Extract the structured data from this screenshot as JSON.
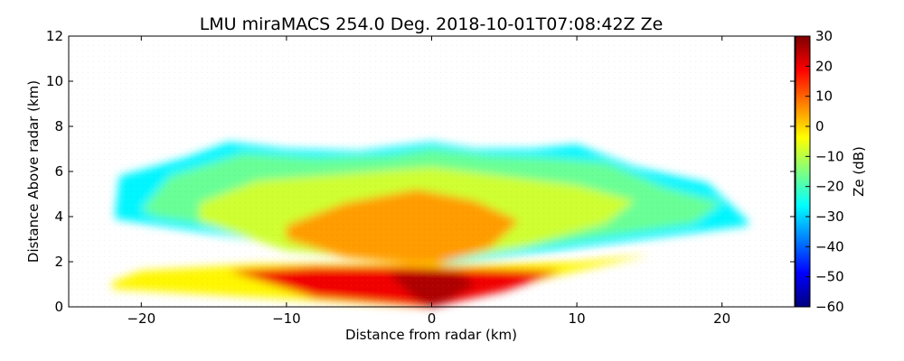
{
  "chart_data": {
    "type": "heatmap",
    "title": "LMU miraMACS 254.0 Deg. 2018-10-01T07:08:42Z  Ze",
    "xlabel": "Distance from radar (km)",
    "ylabel": "Distance Above radar  (km)",
    "xlim": [
      -25,
      25
    ],
    "ylim": [
      0,
      12
    ],
    "xticks": [
      -20,
      -10,
      0,
      10,
      20
    ],
    "xtick_labels": [
      "−20",
      "−10",
      "0",
      "10",
      "20"
    ],
    "yticks": [
      0,
      2,
      4,
      6,
      8,
      10,
      12
    ],
    "ytick_labels": [
      "0",
      "2",
      "4",
      "6",
      "8",
      "10",
      "12"
    ],
    "colorbar": {
      "label": "Ze (dB)",
      "range": [
        -60,
        30
      ],
      "ticks": [
        30,
        20,
        10,
        0,
        -10,
        -20,
        -30,
        -40,
        -50,
        -60
      ],
      "tick_labels": [
        "30",
        "20",
        "10",
        "0",
        "−10",
        "−20",
        "−30",
        "−40",
        "−50",
        "−60"
      ],
      "colormap": "jet"
    },
    "regions": [
      {
        "name": "cloud-top-outer",
        "ze_db": -27,
        "polygon": [
          [
            -21.8,
            4.2
          ],
          [
            -21.5,
            5.8
          ],
          [
            -17,
            6.6
          ],
          [
            -14,
            7.3
          ],
          [
            -10,
            7.0
          ],
          [
            -5,
            6.9
          ],
          [
            0,
            7.3
          ],
          [
            3,
            7.0
          ],
          [
            7,
            7.0
          ],
          [
            10,
            7.2
          ],
          [
            14,
            6.2
          ],
          [
            19,
            5.5
          ],
          [
            21.8,
            3.8
          ],
          [
            21.8,
            3.6
          ],
          [
            0,
            1.8
          ],
          [
            -21.8,
            3.9
          ]
        ]
      },
      {
        "name": "upper-cloud-green",
        "ze_db": -17,
        "polygon": [
          [
            -20,
            4.3
          ],
          [
            -18,
            5.8
          ],
          [
            -13,
            6.8
          ],
          [
            -8,
            6.6
          ],
          [
            -3,
            6.7
          ],
          [
            0,
            7.0
          ],
          [
            4,
            6.7
          ],
          [
            8,
            6.6
          ],
          [
            12,
            6.4
          ],
          [
            16,
            5.3
          ],
          [
            20,
            4.6
          ],
          [
            18,
            3.7
          ],
          [
            0,
            2.0
          ],
          [
            -19,
            4.0
          ]
        ]
      },
      {
        "name": "mid-cloud-yellow",
        "ze_db": -8,
        "polygon": [
          [
            -16,
            4.6
          ],
          [
            -12,
            5.6
          ],
          [
            -6,
            5.9
          ],
          [
            0,
            6.2
          ],
          [
            5,
            5.8
          ],
          [
            10,
            5.4
          ],
          [
            14,
            4.7
          ],
          [
            12,
            3.7
          ],
          [
            6,
            2.6
          ],
          [
            0,
            1.9
          ],
          [
            -10,
            2.5
          ],
          [
            -16,
            3.8
          ]
        ]
      },
      {
        "name": "core-orange",
        "ze_db": 5,
        "polygon": [
          [
            -10,
            3.6
          ],
          [
            -6,
            4.6
          ],
          [
            -1,
            5.2
          ],
          [
            3,
            4.7
          ],
          [
            6,
            3.8
          ],
          [
            4,
            2.6
          ],
          [
            0,
            1.8
          ],
          [
            -6,
            2.2
          ],
          [
            -10,
            3.0
          ]
        ]
      },
      {
        "name": "low-layer-yellow",
        "ze_db": -3,
        "polygon": [
          [
            -22,
            1.1
          ],
          [
            -22,
            0.8
          ],
          [
            -10,
            0.35
          ],
          [
            0,
            0
          ],
          [
            8,
            1.3
          ],
          [
            15,
            2.3
          ],
          [
            10,
            2.0
          ],
          [
            0,
            1.9
          ],
          [
            -12,
            1.9
          ],
          [
            -20,
            1.6
          ]
        ]
      },
      {
        "name": "near-radar-red",
        "ze_db": 20,
        "polygon": [
          [
            -14,
            1.6
          ],
          [
            -8,
            0.4
          ],
          [
            0,
            0
          ],
          [
            5,
            0.7
          ],
          [
            9,
            1.6
          ],
          [
            3,
            1.7
          ],
          [
            -2,
            1.8
          ],
          [
            -8,
            1.8
          ]
        ]
      },
      {
        "name": "radar-core-darkred",
        "ze_db": 26,
        "polygon": [
          [
            -3,
            1.5
          ],
          [
            -1,
            0.3
          ],
          [
            0,
            0
          ],
          [
            1,
            0.2
          ],
          [
            3,
            1.0
          ],
          [
            2,
            1.5
          ],
          [
            0,
            1.6
          ]
        ]
      }
    ]
  }
}
